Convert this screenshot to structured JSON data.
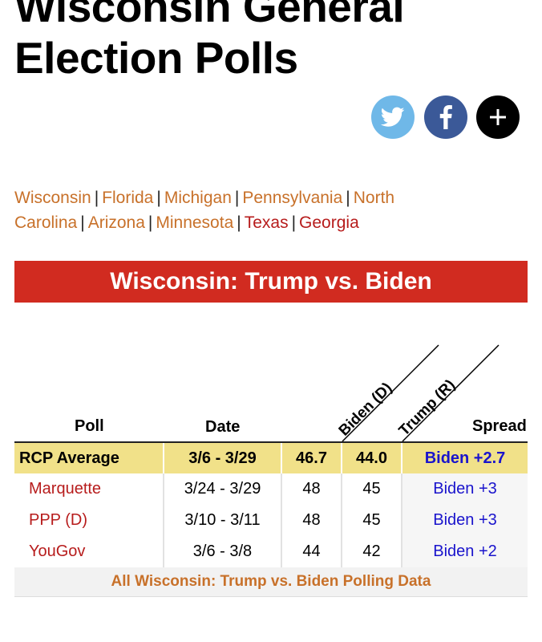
{
  "page": {
    "title": "Wisconsin General Election Polls"
  },
  "share": {
    "twitter_icon": "twitter-bird-icon",
    "facebook_icon": "facebook-f-icon",
    "more_icon": "plus-icon"
  },
  "states": [
    {
      "label": "Wisconsin",
      "color": "#c8712a"
    },
    {
      "label": "Florida",
      "color": "#c8712a"
    },
    {
      "label": "Michigan",
      "color": "#c8712a"
    },
    {
      "label": "Pennsylvania",
      "color": "#c8712a"
    },
    {
      "label": "North Carolina",
      "color": "#c8712a"
    },
    {
      "label": "Arizona",
      "color": "#c8712a"
    },
    {
      "label": "Minnesota",
      "color": "#c8712a"
    },
    {
      "label": "Texas",
      "color": "#b71c1c"
    },
    {
      "label": "Georgia",
      "color": "#b71c1c"
    }
  ],
  "banner": {
    "title": "Wisconsin: Trump vs. Biden",
    "color": "#d12b20"
  },
  "table": {
    "headers": {
      "poll": "Poll",
      "date": "Date",
      "biden": "Biden (D)",
      "trump": "Trump (R)",
      "spread": "Spread"
    },
    "average": {
      "poll": "RCP Average",
      "date": "3/6 - 3/29",
      "biden": "46.7",
      "trump": "44.0",
      "spread": "Biden +2.7"
    },
    "rows": [
      {
        "poll": "Marquette",
        "date": "3/24 - 3/29",
        "biden": "48",
        "trump": "45",
        "spread": "Biden +3"
      },
      {
        "poll": "PPP (D)",
        "date": "3/10 - 3/11",
        "biden": "48",
        "trump": "45",
        "spread": "Biden +3"
      },
      {
        "poll": "YouGov",
        "date": "3/6 - 3/8",
        "biden": "44",
        "trump": "42",
        "spread": "Biden +2"
      }
    ]
  },
  "footer": {
    "link": "All Wisconsin: Trump vs. Biden Polling Data"
  }
}
